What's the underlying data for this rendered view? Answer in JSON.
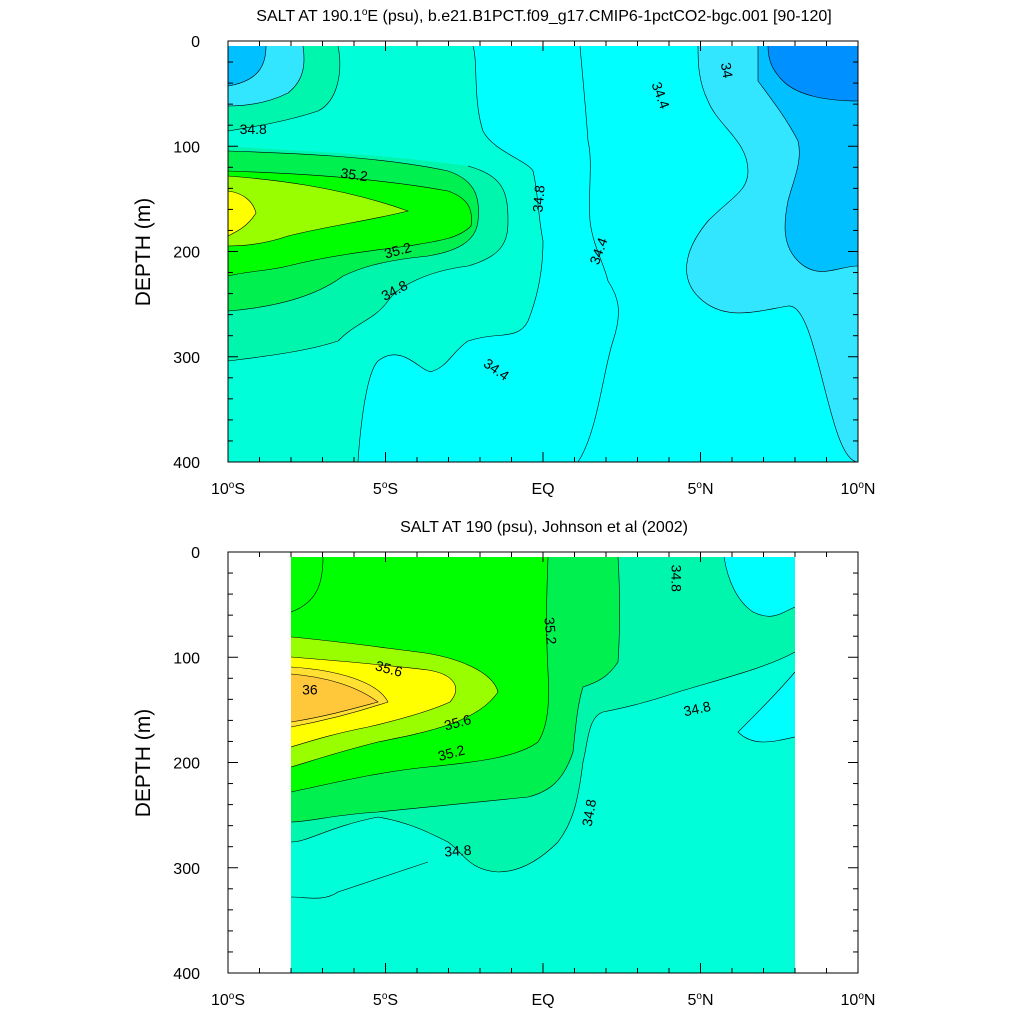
{
  "colors": {
    "s33.6": "#0090ff",
    "s34.0": "#00c0ff",
    "s34.2": "#33e6ff",
    "s34.4": "#00ffff",
    "s34.6": "#00ffd9",
    "s34.8": "#00f5ad",
    "s35.0": "#00f050",
    "s35.2": "#00ff00",
    "s35.4": "#99ff00",
    "s35.6": "#ffff00",
    "s35.8": "#ffe033",
    "s36.0": "#ffc73a"
  },
  "chart_data": [
    {
      "type": "contour",
      "title": "SALT AT 190.1°E (psu), b.e21.B1PCT.f09_g17.CMIP6-1pctCO2-bgc.001 [90-120]",
      "title_parts": {
        "prefix": "SALT AT 190.1",
        "degree": "o",
        "suffix": "E (psu), b.e21.B1PCT.f09_g17.CMIP6-1pctCO2-bgc.001 [90-120]"
      },
      "ylabel": "DEPTH (m)",
      "xlim": [
        -10,
        10
      ],
      "ylim": [
        400,
        0
      ],
      "x_ticks": [
        {
          "value": -10,
          "num": "10",
          "deg": "o",
          "hemi": "S"
        },
        {
          "value": -5,
          "num": "5",
          "deg": "o",
          "hemi": "S"
        },
        {
          "value": 0,
          "num": "EQ",
          "deg": "",
          "hemi": ""
        },
        {
          "value": 5,
          "num": "5",
          "deg": "o",
          "hemi": "N"
        },
        {
          "value": 10,
          "num": "10",
          "deg": "o",
          "hemi": "N"
        }
      ],
      "y_ticks": [
        0,
        100,
        200,
        300,
        400
      ],
      "data_extent": {
        "lat": [
          -10,
          10
        ],
        "depth": [
          5,
          400
        ]
      },
      "contour_interval": 0.2,
      "contour_labels": [
        {
          "text": "34.8",
          "lat": -9.2,
          "depth": 85,
          "angle": 0
        },
        {
          "text": "35.2",
          "lat": -6.0,
          "depth": 128,
          "angle": 8
        },
        {
          "text": "35.2",
          "lat": -4.6,
          "depth": 200,
          "angle": -15
        },
        {
          "text": "34.8",
          "lat": -4.7,
          "depth": 238,
          "angle": -28
        },
        {
          "text": "34.8",
          "lat": -0.1,
          "depth": 150,
          "angle": -85
        },
        {
          "text": "34.4",
          "lat": -1.5,
          "depth": 313,
          "angle": 35
        },
        {
          "text": "34.4",
          "lat": 1.8,
          "depth": 200,
          "angle": -70
        },
        {
          "text": "34.4",
          "lat": 3.7,
          "depth": 52,
          "angle": 70
        },
        {
          "text": "34",
          "lat": 5.8,
          "depth": 28,
          "angle": 80
        }
      ]
    },
    {
      "type": "contour",
      "title": "SALT AT 190 (psu), Johnson et al (2002)",
      "ylabel": "DEPTH (m)",
      "xlim": [
        -10,
        10
      ],
      "ylim": [
        400,
        0
      ],
      "x_ticks": [
        {
          "value": -10,
          "num": "10",
          "deg": "o",
          "hemi": "S"
        },
        {
          "value": -5,
          "num": "5",
          "deg": "o",
          "hemi": "S"
        },
        {
          "value": 0,
          "num": "EQ",
          "deg": "",
          "hemi": ""
        },
        {
          "value": 5,
          "num": "5",
          "deg": "o",
          "hemi": "N"
        },
        {
          "value": 10,
          "num": "10",
          "deg": "o",
          "hemi": "N"
        }
      ],
      "y_ticks": [
        0,
        100,
        200,
        300,
        400
      ],
      "data_extent": {
        "lat": [
          -8,
          8
        ],
        "depth": [
          5,
          400
        ]
      },
      "contour_interval": 0.2,
      "contour_labels": [
        {
          "text": "35.6",
          "lat": -4.9,
          "depth": 112,
          "angle": 15
        },
        {
          "text": "36",
          "lat": -7.4,
          "depth": 132,
          "angle": 0
        },
        {
          "text": "35.6",
          "lat": -2.7,
          "depth": 163,
          "angle": -15
        },
        {
          "text": "35.2",
          "lat": -2.9,
          "depth": 192,
          "angle": -15
        },
        {
          "text": "35.2",
          "lat": 0.2,
          "depth": 75,
          "angle": 85
        },
        {
          "text": "34.8",
          "lat": 4.2,
          "depth": 25,
          "angle": 90
        },
        {
          "text": "34.8",
          "lat": 4.9,
          "depth": 150,
          "angle": -12
        },
        {
          "text": "34.8",
          "lat": 1.5,
          "depth": 248,
          "angle": -80
        },
        {
          "text": "34.8",
          "lat": -2.7,
          "depth": 285,
          "angle": -4
        }
      ]
    }
  ]
}
